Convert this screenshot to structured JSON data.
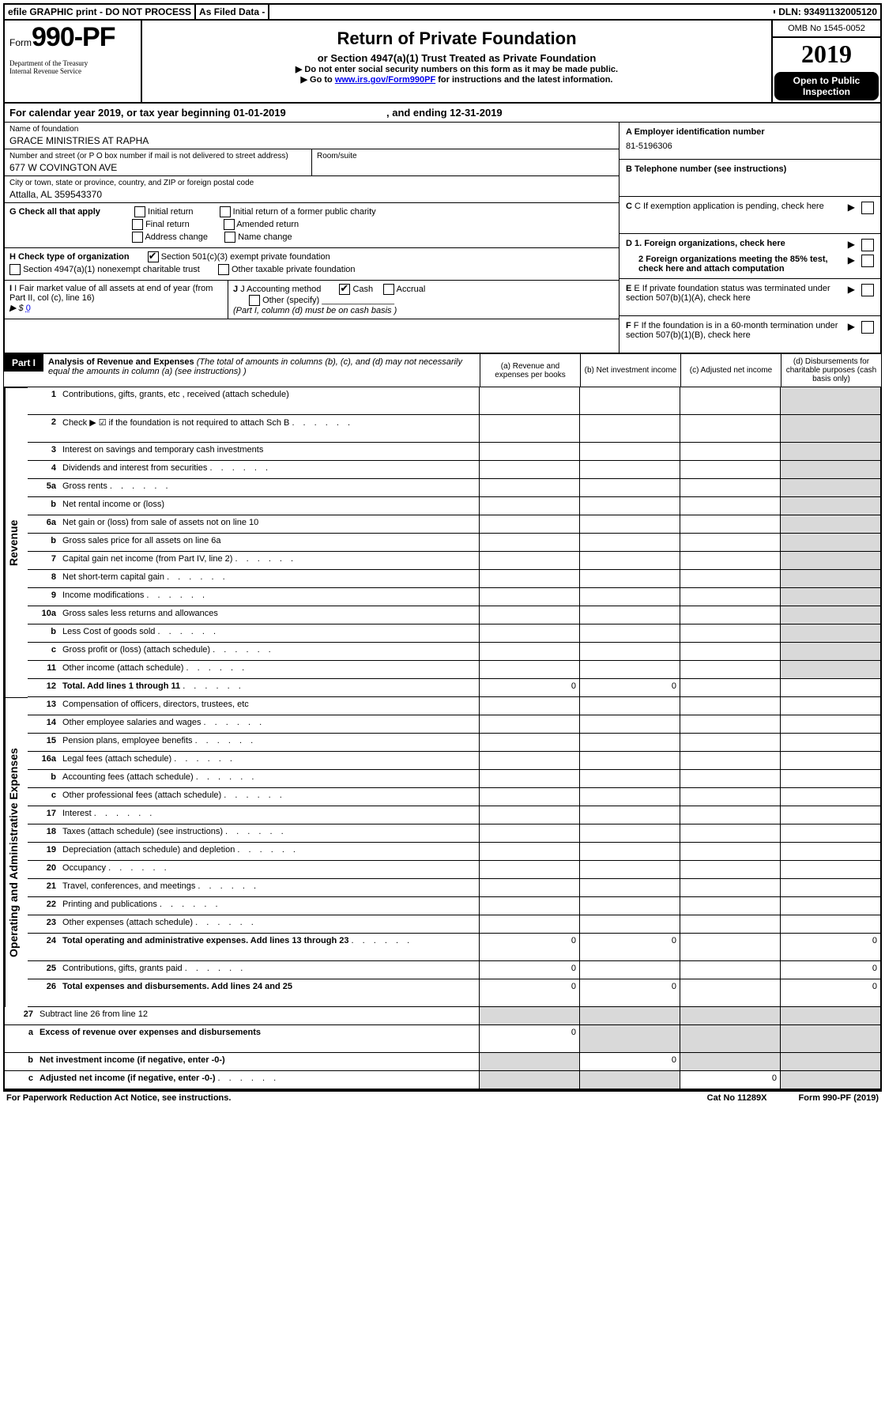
{
  "top": {
    "efile": "efile GRAPHIC print - DO NOT PROCESS",
    "asfiled": "As Filed Data -",
    "dln_label": "DLN:",
    "dln": "93491132005120"
  },
  "header": {
    "form_word": "Form",
    "form_number": "990-PF",
    "treasury": "Department of the Treasury\nInternal Revenue Service",
    "title": "Return of Private Foundation",
    "subtitle1": "or Section 4947(a)(1) Trust Treated as Private Foundation",
    "subtitle2": "▶ Do not enter social security numbers on this form as it may be made public.",
    "subtitle3_pre": "▶ Go to ",
    "subtitle3_link": "www.irs.gov/Form990PF",
    "subtitle3_post": " for instructions and the latest information.",
    "omb": "OMB No 1545-0052",
    "year": "2019",
    "inspection": "Open to Public\nInspection"
  },
  "calendar": {
    "text_pre": "For calendar year 2019, or tax year beginning ",
    "begin": "01-01-2019",
    "text_mid": ", and ending ",
    "end": "12-31-2019"
  },
  "info": {
    "name_label": "Name of foundation",
    "name": "GRACE MINISTRIES AT RAPHA",
    "addr_label": "Number and street (or P O  box number if mail is not delivered to street address)",
    "addr": "677 W COVINGTON AVE",
    "room_label": "Room/suite",
    "city_label": "City or town, state or province, country, and ZIP or foreign postal code",
    "city": "Attalla, AL 359543370",
    "g_label": "G Check all that apply",
    "g_opts": [
      "Initial return",
      "Initial return of a former public charity",
      "Final return",
      "Amended return",
      "Address change",
      "Name change"
    ],
    "h_label": "H Check type of organization",
    "h_opt1": "Section 501(c)(3) exempt private foundation",
    "h_opt2": "Section 4947(a)(1) nonexempt charitable trust",
    "h_opt3": "Other taxable private foundation",
    "i_label": "I Fair market value of all assets at end of year (from Part II, col (c), line 16)",
    "i_arrow": "▶ $",
    "i_val": "0",
    "j_label": "J Accounting method",
    "j_cash": "Cash",
    "j_accrual": "Accrual",
    "j_other": "Other (specify)",
    "j_note": "(Part I, column (d) must be on cash basis )"
  },
  "right": {
    "a_label": "A Employer identification number",
    "a_val": "81-5196306",
    "b_label": "B Telephone number (see instructions)",
    "c_label": "C If exemption application is pending, check here",
    "d1": "D 1. Foreign organizations, check here",
    "d2": "2 Foreign organizations meeting the 85% test, check here and attach computation",
    "e_label": "E If private foundation status was terminated under section 507(b)(1)(A), check here",
    "f_label": "F If the foundation is in a 60-month termination under section 507(b)(1)(B), check here"
  },
  "part1": {
    "label": "Part I",
    "title": "Analysis of Revenue and Expenses",
    "note": "(The total of amounts in columns (b), (c), and (d) may not necessarily equal the amounts in column (a) (see instructions) )",
    "col_a": "(a) Revenue and expenses per books",
    "col_b": "(b) Net investment income",
    "col_c": "(c) Adjusted net income",
    "col_d": "(d) Disbursements for charitable purposes (cash basis only)"
  },
  "sides": {
    "revenue": "Revenue",
    "expenses": "Operating and Administrative Expenses"
  },
  "rows": [
    {
      "n": "1",
      "d": "Contributions, gifts, grants, etc , received (attach schedule)",
      "tall": true
    },
    {
      "n": "2",
      "d": "Check ▶ ☑ if the foundation is not required to attach Sch B",
      "tall": true,
      "dots": true,
      "bold_not": true
    },
    {
      "n": "3",
      "d": "Interest on savings and temporary cash investments"
    },
    {
      "n": "4",
      "d": "Dividends and interest from securities",
      "dots": true
    },
    {
      "n": "5a",
      "d": "Gross rents",
      "dots": true
    },
    {
      "n": "b",
      "d": "Net rental income or (loss)",
      "dgrey": true
    },
    {
      "n": "6a",
      "d": "Net gain or (loss) from sale of assets not on line 10"
    },
    {
      "n": "b",
      "d": "Gross sales price for all assets on line 6a",
      "dgrey": true
    },
    {
      "n": "7",
      "d": "Capital gain net income (from Part IV, line 2)",
      "dots": true
    },
    {
      "n": "8",
      "d": "Net short-term capital gain",
      "dots": true
    },
    {
      "n": "9",
      "d": "Income modifications",
      "dots": true
    },
    {
      "n": "10a",
      "d": "Gross sales less returns and allowances",
      "dgrey": true
    },
    {
      "n": "b",
      "d": "Less  Cost of goods sold",
      "dots": true,
      "dgrey": true
    },
    {
      "n": "c",
      "d": "Gross profit or (loss) (attach schedule)",
      "dots": true
    },
    {
      "n": "11",
      "d": "Other income (attach schedule)",
      "dots": true
    },
    {
      "n": "12",
      "d": "Total. Add lines 1 through 11",
      "dots": true,
      "bold": true,
      "a": "0",
      "b": "0"
    }
  ],
  "exp_rows": [
    {
      "n": "13",
      "d": "Compensation of officers, directors, trustees, etc"
    },
    {
      "n": "14",
      "d": "Other employee salaries and wages",
      "dots": true
    },
    {
      "n": "15",
      "d": "Pension plans, employee benefits",
      "dots": true
    },
    {
      "n": "16a",
      "d": "Legal fees (attach schedule)",
      "dots": true
    },
    {
      "n": "b",
      "d": "Accounting fees (attach schedule)",
      "dots": true
    },
    {
      "n": "c",
      "d": "Other professional fees (attach schedule)",
      "dots": true
    },
    {
      "n": "17",
      "d": "Interest",
      "dots": true
    },
    {
      "n": "18",
      "d": "Taxes (attach schedule) (see instructions)",
      "dots": true
    },
    {
      "n": "19",
      "d": "Depreciation (attach schedule) and depletion",
      "dots": true
    },
    {
      "n": "20",
      "d": "Occupancy",
      "dots": true
    },
    {
      "n": "21",
      "d": "Travel, conferences, and meetings",
      "dots": true
    },
    {
      "n": "22",
      "d": "Printing and publications",
      "dots": true
    },
    {
      "n": "23",
      "d": "Other expenses (attach schedule)",
      "dots": true
    },
    {
      "n": "24",
      "d": "Total operating and administrative expenses. Add lines 13 through 23",
      "dots": true,
      "bold": true,
      "tall": true,
      "a": "0",
      "b": "0",
      "dd": "0"
    },
    {
      "n": "25",
      "d": "Contributions, gifts, grants paid",
      "dots": true,
      "a": "0",
      "dd": "0"
    },
    {
      "n": "26",
      "d": "Total expenses and disbursements. Add lines 24 and 25",
      "bold": true,
      "tall": true,
      "a": "0",
      "b": "0",
      "dd": "0"
    }
  ],
  "bottom_rows": [
    {
      "n": "27",
      "d": "Subtract line 26 from line 12"
    },
    {
      "n": "a",
      "d": "Excess of revenue over expenses and disbursements",
      "bold": true,
      "tall": true,
      "a": "0"
    },
    {
      "n": "b",
      "d": "Net investment income (if negative, enter -0-)",
      "bold": true,
      "b": "0"
    },
    {
      "n": "c",
      "d": "Adjusted net income (if negative, enter -0-)",
      "bold": true,
      "dots": true,
      "c": "0"
    }
  ],
  "footer": {
    "left": "For Paperwork Reduction Act Notice, see instructions.",
    "mid": "Cat No 11289X",
    "right": "Form 990-PF (2019)"
  }
}
